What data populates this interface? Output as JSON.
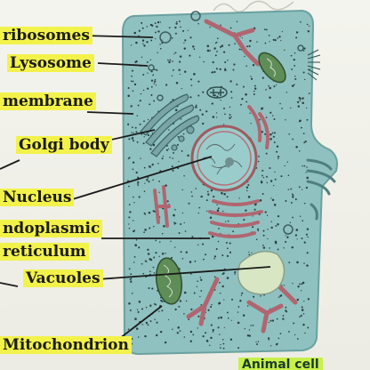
{
  "figure": {
    "labels": {
      "ribosomes": "ribosomes",
      "lysosome": "Lysosome",
      "membrane": "membrane",
      "golgi_body": "Golgi body",
      "nucleus": "Nucleus",
      "endoplasmic_1": "ndoplasmic",
      "endoplasmic_2": "reticulum",
      "vacuoles": "Vacuoles",
      "mitochondrion": "Mitochondrion"
    },
    "caption": "Animal cell"
  }
}
